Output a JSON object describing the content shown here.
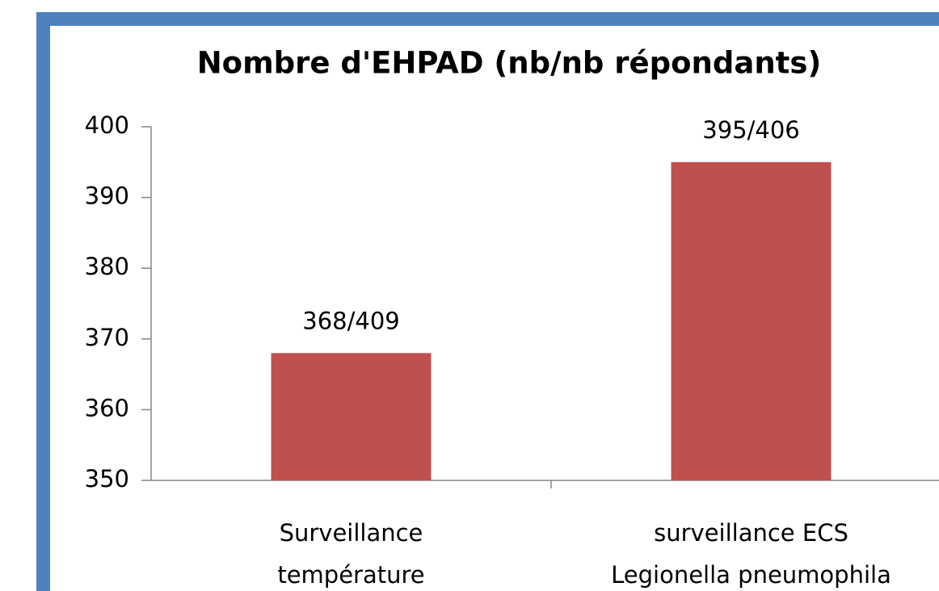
{
  "chart_data": {
    "type": "bar",
    "title": "Nombre d'EHPAD (nb/nb répondants)",
    "categories": [
      "Surveillance\ntempérature",
      "surveillance ECS\nLegionella pneumophila"
    ],
    "values": [
      368,
      395
    ],
    "value_labels": [
      "368/409",
      "395/406"
    ],
    "color": "#c0504d",
    "ylim": [
      350,
      400
    ],
    "yticks": [
      350,
      360,
      370,
      380,
      390,
      400
    ]
  }
}
